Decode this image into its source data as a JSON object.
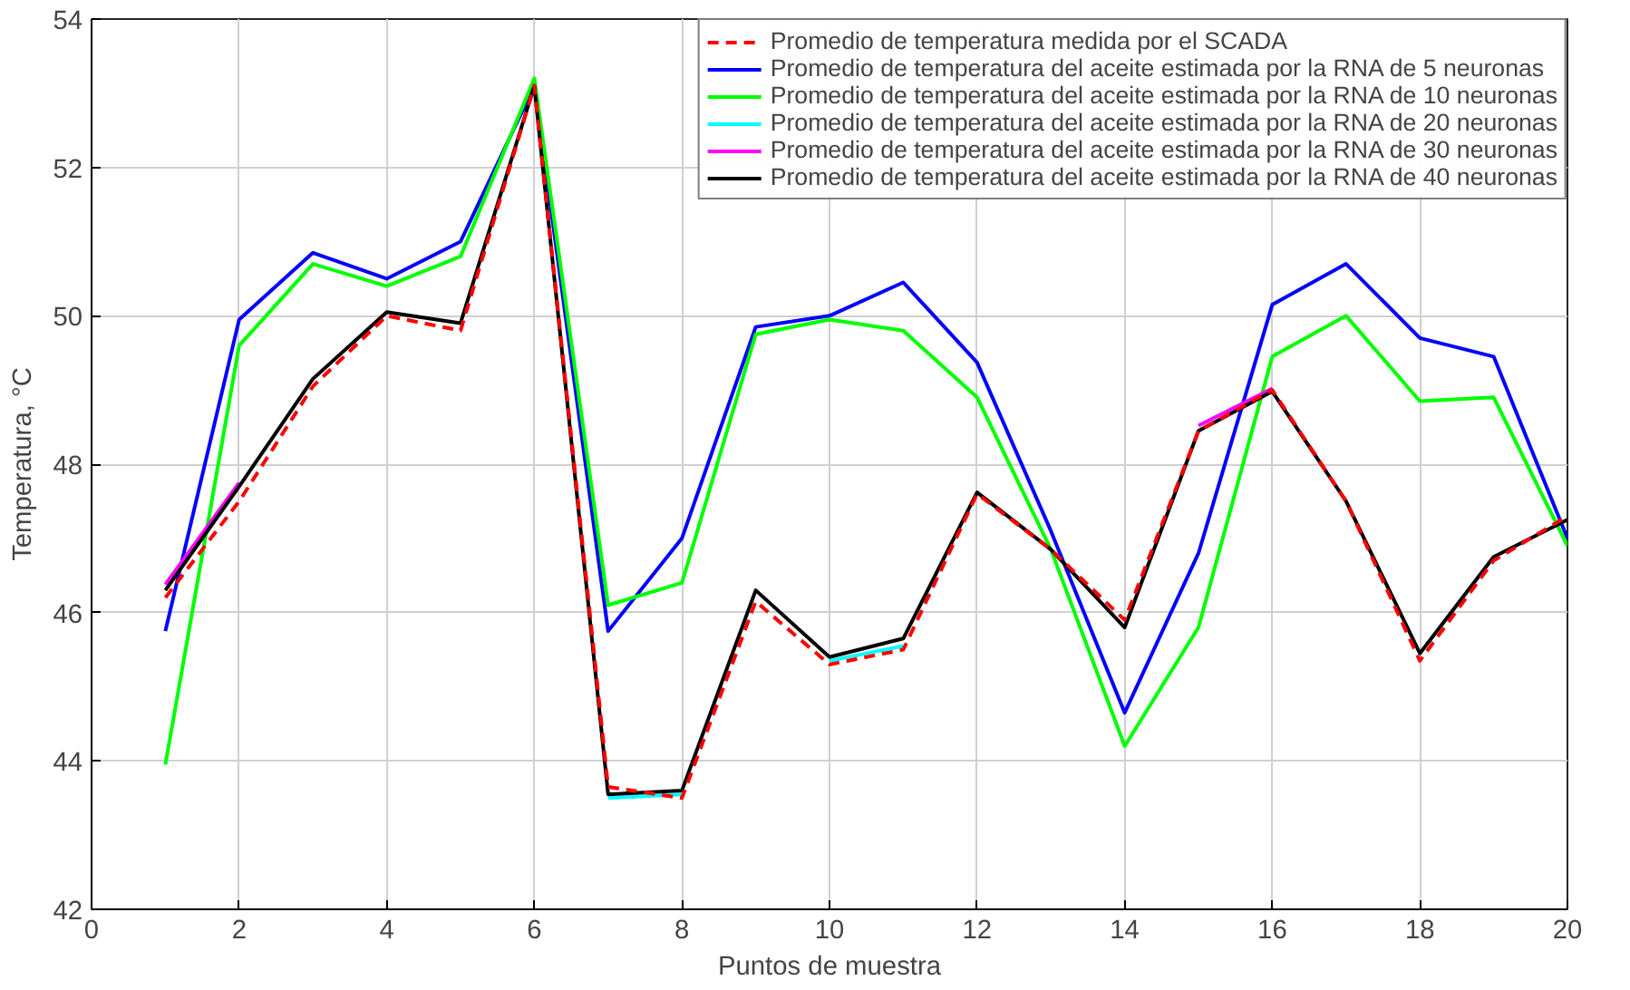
{
  "chart_data": {
    "type": "line",
    "xlabel": "Puntos de muestra",
    "ylabel": "Temperatura, °C",
    "x": [
      1,
      2,
      3,
      4,
      5,
      6,
      7,
      8,
      9,
      10,
      11,
      12,
      13,
      14,
      15,
      16,
      17,
      18,
      19,
      20
    ],
    "xlim": [
      0,
      20
    ],
    "xticks": [
      0,
      2,
      4,
      6,
      8,
      10,
      12,
      14,
      16,
      18,
      20
    ],
    "ylim": [
      42,
      54
    ],
    "yticks": [
      42,
      44,
      46,
      48,
      50,
      52,
      54
    ],
    "grid": true,
    "legend": "top right",
    "series": [
      {
        "name": "Promedio de temperatura medida por el SCADA",
        "color": "#ff0000",
        "line_style": "dashed",
        "values": [
          46.2,
          47.5,
          49.05,
          50.0,
          49.8,
          53.1,
          43.65,
          43.5,
          46.15,
          45.3,
          45.5,
          47.6,
          46.85,
          45.9,
          48.45,
          49.0,
          47.5,
          45.35,
          46.7,
          47.3
        ]
      },
      {
        "name": "Promedio de temperatura del aceite estimada por la RNA de 5 neuronas",
        "color": "#0000ff",
        "values": [
          45.75,
          49.95,
          50.85,
          50.5,
          51.0,
          53.1,
          45.75,
          47.0,
          49.85,
          50.0,
          50.45,
          49.37,
          47.1,
          44.65,
          46.8,
          50.15,
          50.7,
          49.7,
          49.45,
          47.0
        ]
      },
      {
        "name": "Promedio de temperatura del aceite estimada por la RNA de 10 neuronas",
        "color": "#00ff00",
        "values": [
          43.95,
          49.6,
          50.7,
          50.4,
          50.8,
          53.2,
          46.1,
          46.4,
          49.75,
          49.95,
          49.8,
          48.9,
          46.85,
          44.2,
          45.8,
          49.45,
          50.0,
          48.85,
          48.9,
          46.9
        ]
      },
      {
        "name": "Promedio de temperatura del aceite estimada por la RNA de 20 neuronas",
        "color": "#00ffff",
        "values": [
          null,
          null,
          null,
          null,
          null,
          null,
          43.5,
          43.55,
          null,
          45.35,
          45.55,
          null,
          null,
          null,
          null,
          null,
          null,
          null,
          null,
          null
        ]
      },
      {
        "name": "Promedio de temperatura del aceite estimada por la RNA de 30 neuronas",
        "color": "#ff00ff",
        "values": [
          46.38,
          47.75,
          null,
          null,
          null,
          null,
          null,
          null,
          null,
          null,
          null,
          null,
          null,
          null,
          48.52,
          49.02,
          null,
          null,
          null,
          null
        ]
      },
      {
        "name": "Promedio de temperatura del aceite estimada por la RNA de 40 neuronas",
        "color": "#000000",
        "values": [
          46.3,
          47.7,
          49.15,
          50.05,
          49.9,
          53.1,
          43.55,
          43.6,
          46.3,
          45.4,
          45.65,
          47.62,
          46.85,
          45.8,
          48.45,
          48.98,
          47.5,
          45.45,
          46.75,
          47.25
        ]
      }
    ]
  }
}
